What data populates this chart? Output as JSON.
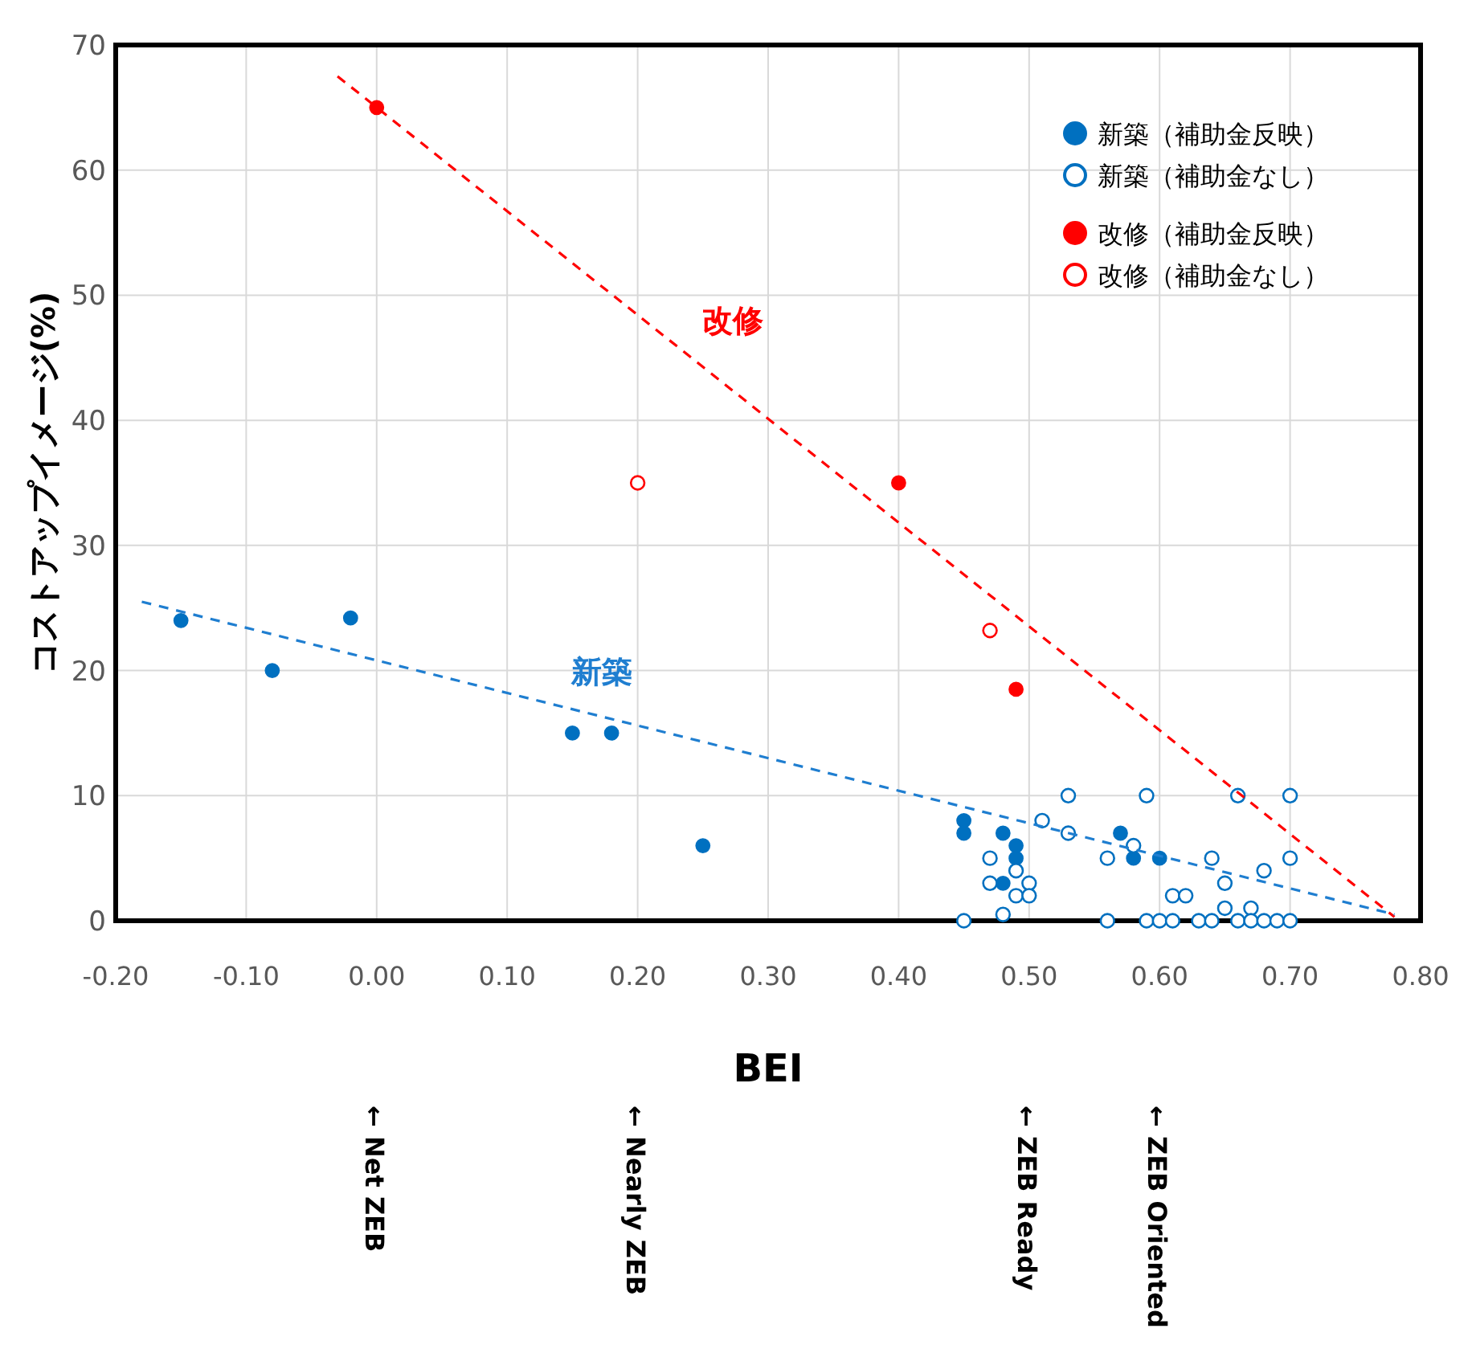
{
  "chart_data": {
    "type": "scatter",
    "xlabel": "BEI",
    "ylabel": "コストアップイメージ(%)",
    "xlim": [
      -0.2,
      0.8
    ],
    "ylim": [
      0,
      70
    ],
    "xticks": [
      {
        "value": -0.2,
        "label": "-0.20"
      },
      {
        "value": -0.1,
        "label": "-0.10"
      },
      {
        "value": 0,
        "label": "0.00"
      },
      {
        "value": 0.1,
        "label": "0.10"
      },
      {
        "value": 0.2,
        "label": "0.20"
      },
      {
        "value": 0.3,
        "label": "0.30"
      },
      {
        "value": 0.4,
        "label": "0.40"
      },
      {
        "value": 0.5,
        "label": "0.50"
      },
      {
        "value": 0.6,
        "label": "0.60"
      },
      {
        "value": 0.7,
        "label": "0.70"
      },
      {
        "value": 0.8,
        "label": "0.80"
      }
    ],
    "yticks": [
      0,
      10,
      20,
      30,
      40,
      50,
      60,
      70
    ],
    "grid": true,
    "legend": "top right",
    "marker": "circle",
    "series": [
      {
        "name": "新築（補助金反映）",
        "color": "#0070c0",
        "x": [
          -0.15,
          -0.08,
          -0.02,
          0.15,
          0.18,
          0.25,
          0.45,
          0.45,
          0.48,
          0.49,
          0.49,
          0.48,
          0.57,
          0.58,
          0.6
        ],
        "values": [
          24,
          20,
          24.2,
          15,
          15,
          6,
          8,
          7,
          7,
          6,
          5,
          3,
          7,
          5,
          5
        ]
      },
      {
        "name": "新築（補助金なし）",
        "color": "#0070c0",
        "x": [
          0.47,
          0.49,
          0.47,
          0.5,
          0.49,
          0.5,
          0.45,
          0.48,
          0.51,
          0.53,
          0.53,
          0.59,
          0.66,
          0.7,
          0.58,
          0.56,
          0.64,
          0.7,
          0.68,
          0.65,
          0.61,
          0.62,
          0.65,
          0.67,
          0.56,
          0.59,
          0.6,
          0.61,
          0.63,
          0.64,
          0.66,
          0.67,
          0.68,
          0.69,
          0.7
        ],
        "values": [
          5,
          4,
          3,
          3,
          2,
          2,
          0,
          0.5,
          8,
          10,
          7,
          10,
          10,
          10,
          6,
          5,
          5,
          5,
          4,
          3,
          2,
          2,
          1,
          1,
          0,
          0,
          0,
          0,
          0,
          0,
          0,
          0,
          0,
          0,
          0
        ]
      },
      {
        "name": "改修（補助金反映）",
        "color": "#ff0000",
        "x": [
          0,
          0.4,
          0.49
        ],
        "values": [
          65,
          35,
          18.5
        ]
      },
      {
        "name": "改修（補助金なし）",
        "color": "#ff0000",
        "x": [
          0.2,
          0.47
        ],
        "values": [
          35,
          23.2
        ]
      },
      {
        "name": "改修",
        "type": "line",
        "color": "#ff0000",
        "line_style": "dashed",
        "marker": "none",
        "x": [
          -0.03,
          0.78
        ],
        "values": [
          67.5,
          0.3
        ]
      },
      {
        "name": "新築",
        "type": "line",
        "color": "#1f7ed0",
        "line_style": "dashed",
        "marker": "none",
        "x": [
          -0.18,
          0.78
        ],
        "values": [
          25.5,
          0.5
        ]
      }
    ],
    "annotations": [
      "← Net ZEB",
      "← Nearly ZEB",
      "← ZEB Ready",
      "← ZEB Oriented"
    ]
  }
}
